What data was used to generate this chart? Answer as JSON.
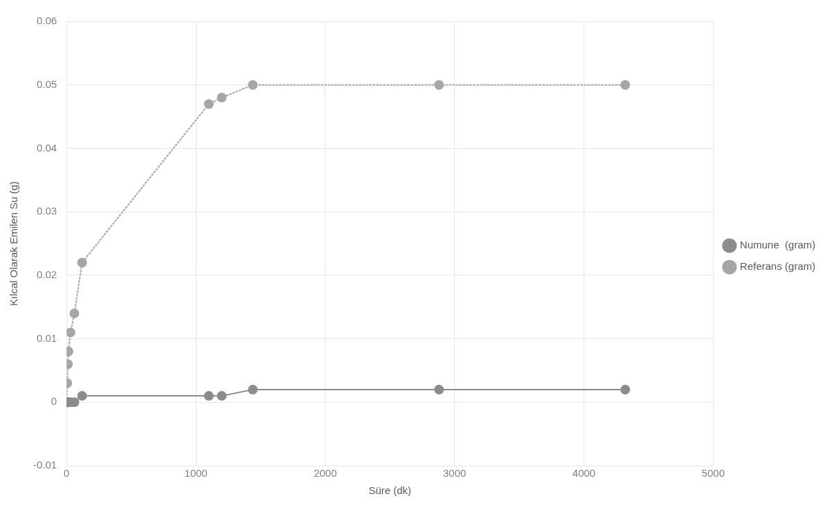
{
  "chart_data": {
    "type": "line",
    "xlabel": "Süre (dk)",
    "ylabel": "Kılcal Olarak Emilen Su (g)",
    "xlim": [
      0,
      5000
    ],
    "xticks": [
      0,
      1000,
      2000,
      3000,
      4000,
      5000
    ],
    "ylim": [
      -0.01,
      0.06
    ],
    "yticks": [
      -0.01,
      0,
      0.01,
      0.02,
      0.03,
      0.04,
      0.05,
      0.06
    ],
    "grid": true,
    "legend": "right",
    "marker": "circle",
    "series": [
      {
        "name": "Numune  (gram)",
        "color": "#8c8c8c",
        "line_style": "solid",
        "x": [
          0,
          5,
          10,
          15,
          30,
          60,
          120,
          1100,
          1200,
          1440,
          2880,
          4320
        ],
        "values": [
          0,
          0,
          0,
          0,
          0,
          0,
          0.001,
          0.001,
          0.001,
          0.002,
          0.002,
          0.002
        ]
      },
      {
        "name": "Referans (gram)",
        "color": "#a6a6a6",
        "line_style": "dotted",
        "x": [
          0,
          5,
          10,
          15,
          30,
          60,
          120,
          1100,
          1200,
          1440,
          2880,
          4320
        ],
        "values": [
          0,
          0.003,
          0.006,
          0.008,
          0.011,
          0.014,
          0.022,
          0.047,
          0.048,
          0.05,
          0.05,
          0.05
        ]
      }
    ]
  }
}
